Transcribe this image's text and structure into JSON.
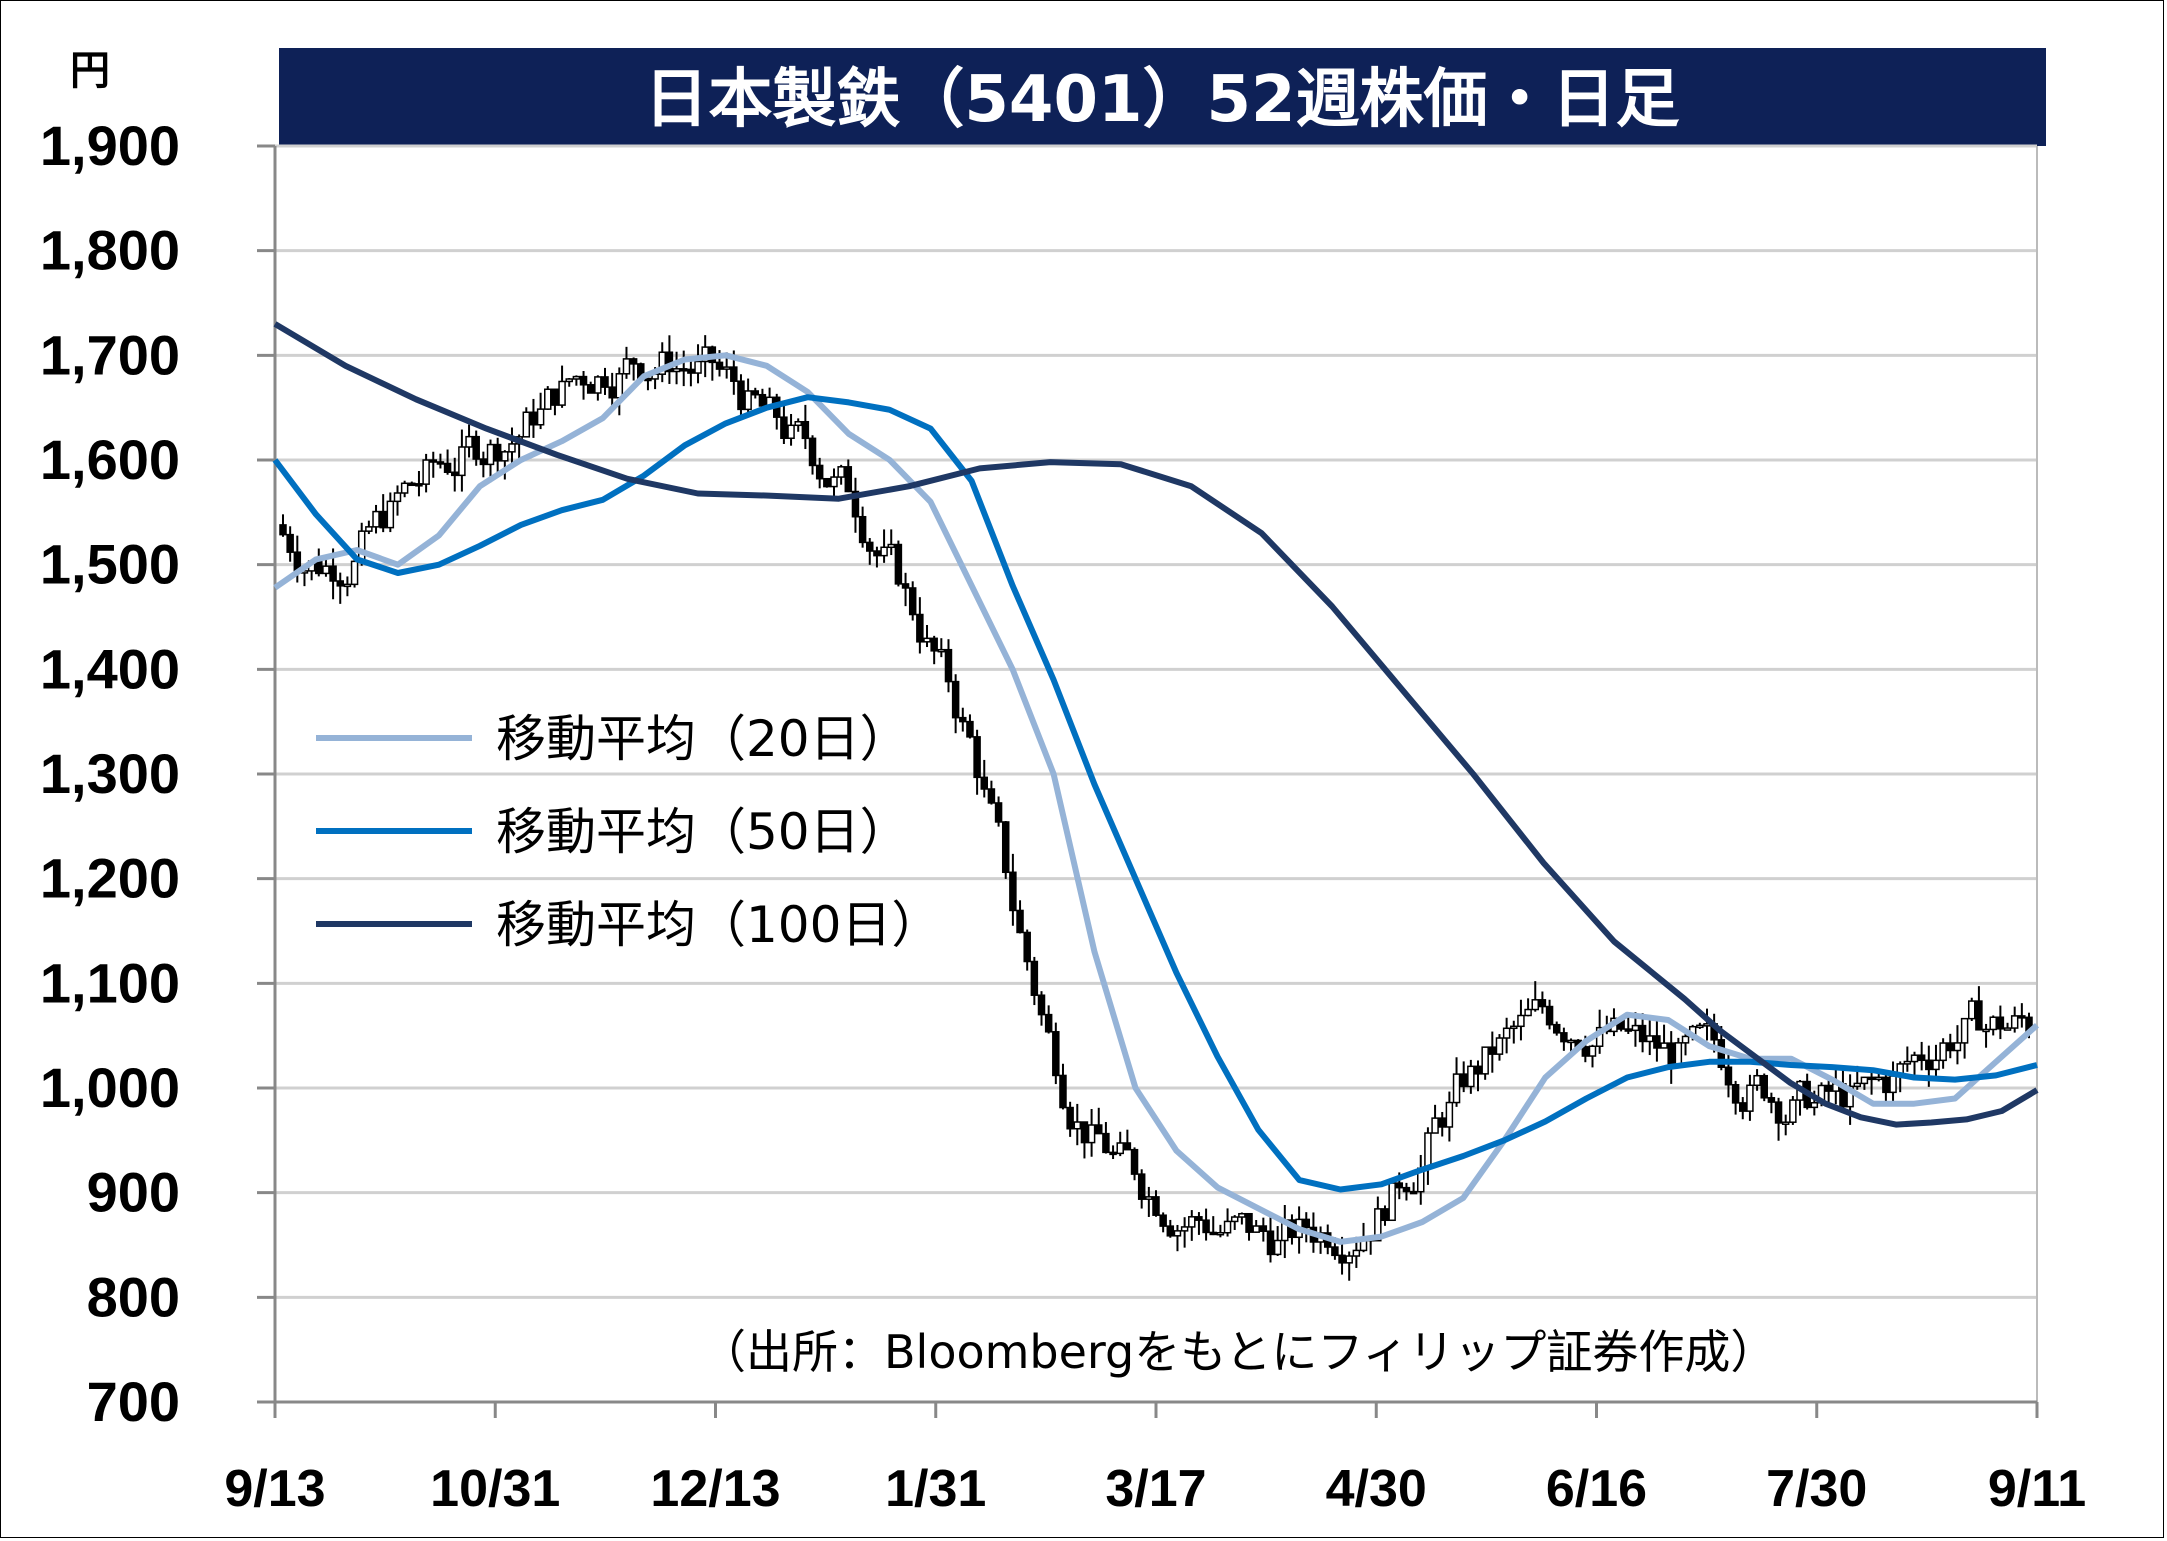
{
  "chart_data": {
    "type": "candlestick",
    "title": "日本製鉄（5401）52週株価・日足",
    "ylabel": "円",
    "ylim": [
      700,
      1900
    ],
    "yticks": [
      "700",
      "800",
      "900",
      "1,000",
      "1,100",
      "1,200",
      "1,300",
      "1,400",
      "1,500",
      "1,600",
      "1,700",
      "1,800",
      "1,900"
    ],
    "categories": [
      "9/13",
      "10/31",
      "12/13",
      "1/31",
      "3/17",
      "4/30",
      "6/16",
      "7/30",
      "9/11"
    ],
    "grid": true,
    "legend_position": "left",
    "source": "（出所：Bloombergをもとにフィリップ証券作成）",
    "colors": {
      "title_bg": "#0e2157",
      "ma20": "#95b3d7",
      "ma50": "#0070c0",
      "ma100": "#1f3864",
      "candle": "#000000",
      "grid": "#d0d0d0"
    },
    "series": [
      {
        "name": "移動平均（20日）",
        "color": "#95b3d7",
        "points": [
          [
            0,
            1478
          ],
          [
            0.05,
            1505
          ],
          [
            0.1,
            1514
          ],
          [
            0.15,
            1500
          ],
          [
            0.2,
            1528
          ],
          [
            0.25,
            1575
          ],
          [
            0.3,
            1600
          ],
          [
            0.35,
            1618
          ],
          [
            0.4,
            1640
          ],
          [
            0.45,
            1680
          ],
          [
            0.5,
            1696
          ],
          [
            0.55,
            1700
          ],
          [
            0.6,
            1690
          ],
          [
            0.65,
            1665
          ],
          [
            0.7,
            1625
          ],
          [
            0.75,
            1600
          ],
          [
            0.8,
            1560
          ],
          [
            0.85,
            1480
          ],
          [
            0.9,
            1400
          ],
          [
            0.95,
            1300
          ],
          [
            1.0,
            1130
          ],
          [
            1.05,
            1000
          ],
          [
            1.1,
            940
          ],
          [
            1.15,
            905
          ],
          [
            1.2,
            885
          ],
          [
            1.25,
            865
          ],
          [
            1.3,
            853
          ],
          [
            1.35,
            858
          ],
          [
            1.4,
            872
          ],
          [
            1.45,
            895
          ],
          [
            1.5,
            950
          ],
          [
            1.55,
            1010
          ],
          [
            1.6,
            1045
          ],
          [
            1.65,
            1070
          ],
          [
            1.7,
            1065
          ],
          [
            1.75,
            1040
          ],
          [
            1.8,
            1028
          ],
          [
            1.85,
            1028
          ],
          [
            1.9,
            1008
          ],
          [
            1.95,
            985
          ],
          [
            2.0,
            985
          ],
          [
            2.05,
            990
          ],
          [
            2.1,
            1025
          ],
          [
            2.15,
            1060
          ]
        ]
      },
      {
        "name": "移動平均（50日）",
        "color": "#0070c0",
        "points": [
          [
            0,
            1600
          ],
          [
            0.05,
            1548
          ],
          [
            0.1,
            1505
          ],
          [
            0.15,
            1492
          ],
          [
            0.2,
            1500
          ],
          [
            0.25,
            1518
          ],
          [
            0.3,
            1538
          ],
          [
            0.35,
            1552
          ],
          [
            0.4,
            1562
          ],
          [
            0.45,
            1585
          ],
          [
            0.5,
            1614
          ],
          [
            0.55,
            1635
          ],
          [
            0.6,
            1650
          ],
          [
            0.65,
            1660
          ],
          [
            0.7,
            1655
          ],
          [
            0.75,
            1648
          ],
          [
            0.8,
            1630
          ],
          [
            0.85,
            1580
          ],
          [
            0.9,
            1480
          ],
          [
            0.95,
            1390
          ],
          [
            1.0,
            1290
          ],
          [
            1.05,
            1200
          ],
          [
            1.1,
            1110
          ],
          [
            1.15,
            1030
          ],
          [
            1.2,
            960
          ],
          [
            1.25,
            912
          ],
          [
            1.3,
            903
          ],
          [
            1.35,
            908
          ],
          [
            1.4,
            922
          ],
          [
            1.45,
            935
          ],
          [
            1.5,
            950
          ],
          [
            1.55,
            968
          ],
          [
            1.6,
            990
          ],
          [
            1.65,
            1010
          ],
          [
            1.7,
            1020
          ],
          [
            1.75,
            1025
          ],
          [
            1.8,
            1025
          ],
          [
            1.85,
            1022
          ],
          [
            1.9,
            1020
          ],
          [
            1.95,
            1017
          ],
          [
            2.0,
            1010
          ],
          [
            2.05,
            1008
          ],
          [
            2.1,
            1012
          ],
          [
            2.15,
            1022
          ]
        ]
      },
      {
        "name": "移動平均（100日）",
        "color": "#1f3864",
        "points": [
          [
            0,
            1730
          ],
          [
            0.1,
            1690
          ],
          [
            0.2,
            1658
          ],
          [
            0.3,
            1630
          ],
          [
            0.4,
            1605
          ],
          [
            0.5,
            1582
          ],
          [
            0.6,
            1568
          ],
          [
            0.7,
            1566
          ],
          [
            0.8,
            1563
          ],
          [
            0.9,
            1575
          ],
          [
            1.0,
            1592
          ],
          [
            1.1,
            1598
          ],
          [
            1.2,
            1596
          ],
          [
            1.3,
            1575
          ],
          [
            1.4,
            1530
          ],
          [
            1.5,
            1460
          ],
          [
            1.6,
            1380
          ],
          [
            1.7,
            1300
          ],
          [
            1.8,
            1215
          ],
          [
            1.9,
            1140
          ],
          [
            2.0,
            1085
          ],
          [
            2.05,
            1055
          ],
          [
            2.1,
            1030
          ],
          [
            2.15,
            1005
          ],
          [
            2.2,
            985
          ],
          [
            2.25,
            972
          ],
          [
            2.3,
            965
          ],
          [
            2.35,
            967
          ],
          [
            2.4,
            970
          ],
          [
            2.45,
            978
          ],
          [
            2.5,
            998
          ]
        ]
      }
    ]
  }
}
